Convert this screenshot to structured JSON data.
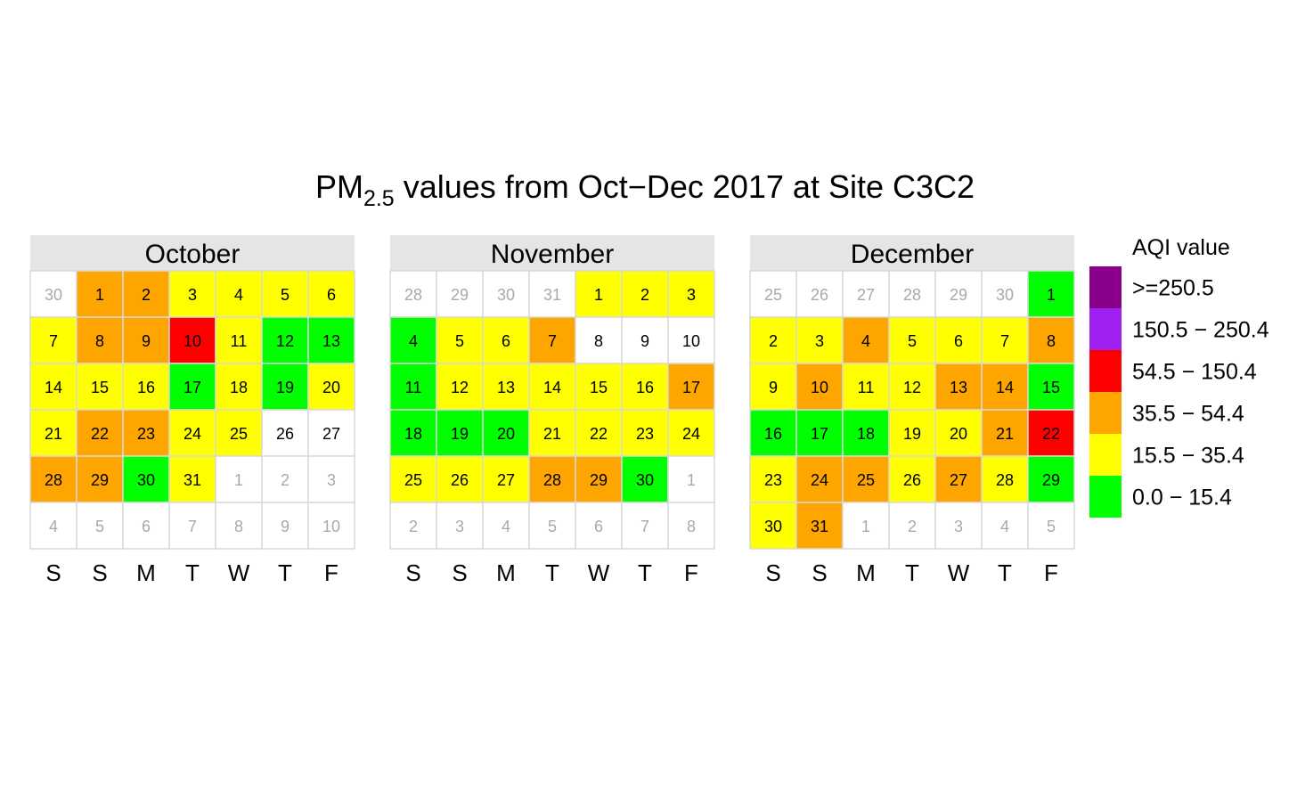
{
  "chart_data": {
    "type": "heatmap",
    "title": {
      "main": "PM",
      "subscript": "2.5",
      "rest": " values from Oct−Dec 2017 at Site C3C2"
    },
    "weekday_labels": [
      "S",
      "S",
      "M",
      "T",
      "W",
      "T",
      "F"
    ],
    "legend": {
      "title": "AQI value",
      "placement": "right",
      "categories": [
        {
          "label": ">=250.5",
          "color": "#8B008B"
        },
        {
          "label": "150.5 − 250.4",
          "color": "#A020F0"
        },
        {
          "label": "54.5 − 150.4",
          "color": "#FF0000"
        },
        {
          "label": "35.5 − 54.4",
          "color": "#FFA500"
        },
        {
          "label": "15.5 − 35.4",
          "color": "#FFFF00"
        },
        {
          "label": "0.0 − 15.4",
          "color": "#00FF00"
        }
      ]
    },
    "missing_color": "#FFFFFF",
    "other_month_text_color": "#A9A9A9",
    "months": [
      {
        "name": "October",
        "weeks": [
          [
            {
              "d": "30",
              "o": 1
            },
            {
              "d": "1",
              "c": 3
            },
            {
              "d": "2",
              "c": 3
            },
            {
              "d": "3",
              "c": 4
            },
            {
              "d": "4",
              "c": 4
            },
            {
              "d": "5",
              "c": 4
            },
            {
              "d": "6",
              "c": 4
            }
          ],
          [
            {
              "d": "7",
              "c": 4
            },
            {
              "d": "8",
              "c": 3
            },
            {
              "d": "9",
              "c": 3
            },
            {
              "d": "10",
              "c": 2
            },
            {
              "d": "11",
              "c": 4
            },
            {
              "d": "12",
              "c": 5
            },
            {
              "d": "13",
              "c": 5
            }
          ],
          [
            {
              "d": "14",
              "c": 4
            },
            {
              "d": "15",
              "c": 4
            },
            {
              "d": "16",
              "c": 4
            },
            {
              "d": "17",
              "c": 5
            },
            {
              "d": "18",
              "c": 4
            },
            {
              "d": "19",
              "c": 5
            },
            {
              "d": "20",
              "c": 4
            }
          ],
          [
            {
              "d": "21",
              "c": 4
            },
            {
              "d": "22",
              "c": 3
            },
            {
              "d": "23",
              "c": 3
            },
            {
              "d": "24",
              "c": 4
            },
            {
              "d": "25",
              "c": 4
            },
            {
              "d": "26"
            },
            {
              "d": "27"
            }
          ],
          [
            {
              "d": "28",
              "c": 3
            },
            {
              "d": "29",
              "c": 3
            },
            {
              "d": "30",
              "c": 5
            },
            {
              "d": "31",
              "c": 4
            },
            {
              "d": "1",
              "o": 1
            },
            {
              "d": "2",
              "o": 1
            },
            {
              "d": "3",
              "o": 1
            }
          ],
          [
            {
              "d": "4",
              "o": 1
            },
            {
              "d": "5",
              "o": 1
            },
            {
              "d": "6",
              "o": 1
            },
            {
              "d": "7",
              "o": 1
            },
            {
              "d": "8",
              "o": 1
            },
            {
              "d": "9",
              "o": 1
            },
            {
              "d": "10",
              "o": 1
            }
          ]
        ]
      },
      {
        "name": "November",
        "weeks": [
          [
            {
              "d": "28",
              "o": 1
            },
            {
              "d": "29",
              "o": 1
            },
            {
              "d": "30",
              "o": 1
            },
            {
              "d": "31",
              "o": 1
            },
            {
              "d": "1",
              "c": 4
            },
            {
              "d": "2",
              "c": 4
            },
            {
              "d": "3",
              "c": 4
            }
          ],
          [
            {
              "d": "4",
              "c": 5
            },
            {
              "d": "5",
              "c": 4
            },
            {
              "d": "6",
              "c": 4
            },
            {
              "d": "7",
              "c": 3
            },
            {
              "d": "8"
            },
            {
              "d": "9"
            },
            {
              "d": "10"
            }
          ],
          [
            {
              "d": "11",
              "c": 5
            },
            {
              "d": "12",
              "c": 4
            },
            {
              "d": "13",
              "c": 4
            },
            {
              "d": "14",
              "c": 4
            },
            {
              "d": "15",
              "c": 4
            },
            {
              "d": "16",
              "c": 4
            },
            {
              "d": "17",
              "c": 3
            }
          ],
          [
            {
              "d": "18",
              "c": 5
            },
            {
              "d": "19",
              "c": 5
            },
            {
              "d": "20",
              "c": 5
            },
            {
              "d": "21",
              "c": 4
            },
            {
              "d": "22",
              "c": 4
            },
            {
              "d": "23",
              "c": 4
            },
            {
              "d": "24",
              "c": 4
            }
          ],
          [
            {
              "d": "25",
              "c": 4
            },
            {
              "d": "26",
              "c": 4
            },
            {
              "d": "27",
              "c": 4
            },
            {
              "d": "28",
              "c": 3
            },
            {
              "d": "29",
              "c": 3
            },
            {
              "d": "30",
              "c": 5
            },
            {
              "d": "1",
              "o": 1
            }
          ],
          [
            {
              "d": "2",
              "o": 1
            },
            {
              "d": "3",
              "o": 1
            },
            {
              "d": "4",
              "o": 1
            },
            {
              "d": "5",
              "o": 1
            },
            {
              "d": "6",
              "o": 1
            },
            {
              "d": "7",
              "o": 1
            },
            {
              "d": "8",
              "o": 1
            }
          ]
        ]
      },
      {
        "name": "December",
        "weeks": [
          [
            {
              "d": "25",
              "o": 1
            },
            {
              "d": "26",
              "o": 1
            },
            {
              "d": "27",
              "o": 1
            },
            {
              "d": "28",
              "o": 1
            },
            {
              "d": "29",
              "o": 1
            },
            {
              "d": "30",
              "o": 1
            },
            {
              "d": "1",
              "c": 5
            }
          ],
          [
            {
              "d": "2",
              "c": 4
            },
            {
              "d": "3",
              "c": 4
            },
            {
              "d": "4",
              "c": 3
            },
            {
              "d": "5",
              "c": 4
            },
            {
              "d": "6",
              "c": 4
            },
            {
              "d": "7",
              "c": 4
            },
            {
              "d": "8",
              "c": 3
            }
          ],
          [
            {
              "d": "9",
              "c": 4
            },
            {
              "d": "10",
              "c": 3
            },
            {
              "d": "11",
              "c": 4
            },
            {
              "d": "12",
              "c": 4
            },
            {
              "d": "13",
              "c": 3
            },
            {
              "d": "14",
              "c": 3
            },
            {
              "d": "15",
              "c": 5
            }
          ],
          [
            {
              "d": "16",
              "c": 5
            },
            {
              "d": "17",
              "c": 5
            },
            {
              "d": "18",
              "c": 5
            },
            {
              "d": "19",
              "c": 4
            },
            {
              "d": "20",
              "c": 4
            },
            {
              "d": "21",
              "c": 3
            },
            {
              "d": "22",
              "c": 2
            }
          ],
          [
            {
              "d": "23",
              "c": 4
            },
            {
              "d": "24",
              "c": 3
            },
            {
              "d": "25",
              "c": 3
            },
            {
              "d": "26",
              "c": 4
            },
            {
              "d": "27",
              "c": 3
            },
            {
              "d": "28",
              "c": 4
            },
            {
              "d": "29",
              "c": 5
            }
          ],
          [
            {
              "d": "30",
              "c": 4
            },
            {
              "d": "31",
              "c": 3
            },
            {
              "d": "1",
              "o": 1
            },
            {
              "d": "2",
              "o": 1
            },
            {
              "d": "3",
              "o": 1
            },
            {
              "d": "4",
              "o": 1
            },
            {
              "d": "5",
              "o": 1
            }
          ]
        ]
      }
    ]
  }
}
